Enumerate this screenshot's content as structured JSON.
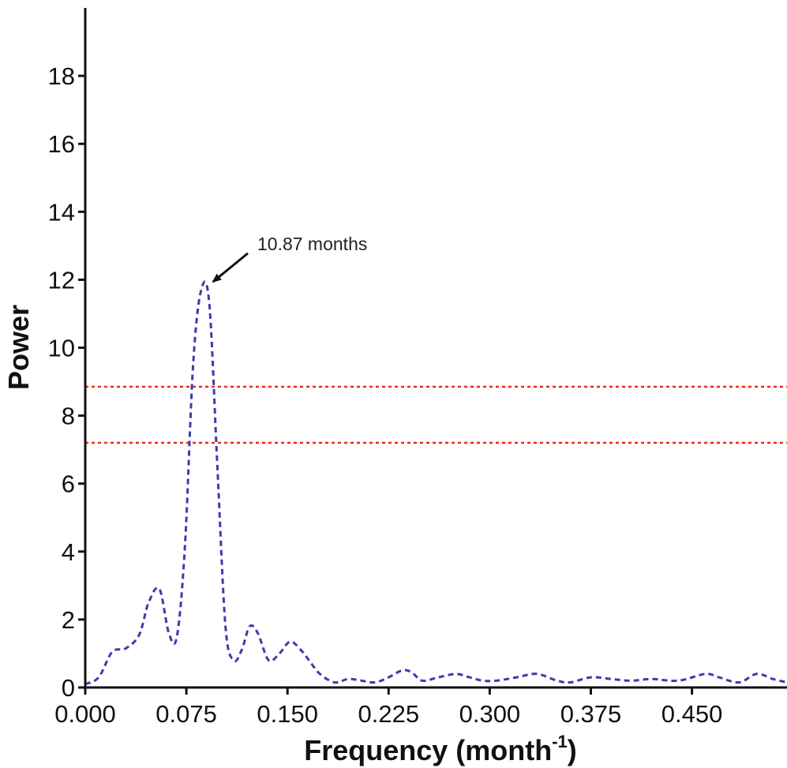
{
  "chart_data": {
    "type": "line",
    "xlabel": "Frequency (month",
    "xlabel_superscript": "-1",
    "xlabel_close": ")",
    "ylabel": "Power",
    "xlim": [
      0,
      0.5205
    ],
    "ylim": [
      0,
      20
    ],
    "x_ticks": [
      "0.000",
      "0.075",
      "0.150",
      "0.225",
      "0.300",
      "0.375",
      "0.450"
    ],
    "y_ticks": [
      "0",
      "2",
      "4",
      "6",
      "8",
      "10",
      "12",
      "14",
      "16",
      "18"
    ],
    "x_tick_values": [
      0,
      0.075,
      0.15,
      0.225,
      0.3,
      0.375,
      0.45
    ],
    "y_tick_values": [
      0,
      2,
      4,
      6,
      8,
      10,
      12,
      14,
      16,
      18
    ],
    "grid": false,
    "legend": "none",
    "series": [
      {
        "color": "#3b3bb0",
        "style": "dashed",
        "x": [
          0.0,
          0.01,
          0.02,
          0.03,
          0.04,
          0.047,
          0.055,
          0.062,
          0.068,
          0.074,
          0.08,
          0.086,
          0.092,
          0.098,
          0.104,
          0.11,
          0.116,
          0.122,
          0.128,
          0.136,
          0.144,
          0.152,
          0.16,
          0.166,
          0.174,
          0.185,
          0.195,
          0.205,
          0.215,
          0.225,
          0.235,
          0.242,
          0.25,
          0.262,
          0.275,
          0.285,
          0.295,
          0.305,
          0.32,
          0.335,
          0.35,
          0.36,
          0.375,
          0.39,
          0.405,
          0.42,
          0.44,
          0.46,
          0.47,
          0.485,
          0.498,
          0.51,
          0.5205
        ],
        "values": [
          0.1,
          0.3,
          1.05,
          1.15,
          1.55,
          2.5,
          2.9,
          1.6,
          1.5,
          4.2,
          9.5,
          11.7,
          11.3,
          6.5,
          1.8,
          0.8,
          1.1,
          1.8,
          1.6,
          0.8,
          1.0,
          1.35,
          1.1,
          0.8,
          0.4,
          0.15,
          0.25,
          0.2,
          0.15,
          0.3,
          0.5,
          0.45,
          0.2,
          0.3,
          0.4,
          0.3,
          0.2,
          0.2,
          0.3,
          0.4,
          0.2,
          0.15,
          0.3,
          0.25,
          0.2,
          0.25,
          0.2,
          0.4,
          0.3,
          0.15,
          0.4,
          0.25,
          0.15
        ]
      }
    ],
    "reference_lines": [
      {
        "y": 8.85,
        "color": "#ee2a1a",
        "style": "dotted"
      },
      {
        "y": 7.2,
        "color": "#ee2a1a",
        "style": "dotted"
      }
    ],
    "annotations": [
      {
        "text": "10.87 months",
        "x": 0.0925,
        "y": 11.85
      }
    ]
  }
}
